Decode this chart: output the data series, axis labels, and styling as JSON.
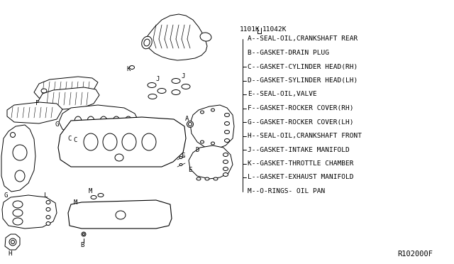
{
  "background_color": "#ffffff",
  "part_numbers_left": "1101K",
  "part_numbers_right": "11042K",
  "legend_items": [
    "A--SEAL-OIL,CRANKSHAFT REAR",
    "B--GASKET-DRAIN PLUG",
    "C--GASKET-CYLINDER HEAD(RH)",
    "D--GASKET-SYLINDER HEAD(LH)",
    "E--SEAL-OIL,VALVE",
    "F--GASKET-ROCKER COVER(RH)",
    "G--GASKET-ROCKER COVER(LH)",
    "H--SEAL-OIL,CRANKSHAFT FRONT",
    "J--GASKET-INTAKE MANIFOLD",
    "K--GASKET-THROTTLE CHAMBER",
    "L--GASKET-EXHAUST MANIFOLD",
    "M--O-RINGS- OIL PAN"
  ],
  "ref_code": "R102000F",
  "lc": "#000000",
  "tc": "#000000",
  "legend_font_size": 6.8,
  "label_font_size": 6.5,
  "pn_font_size": 6.8,
  "ref_font_size": 7.5
}
